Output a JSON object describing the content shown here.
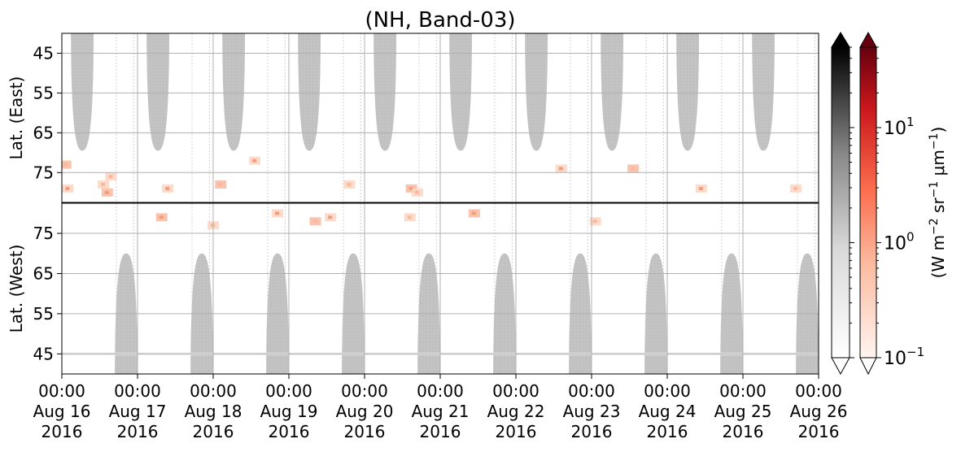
{
  "chart_data": {
    "type": "heatmap",
    "title": "(NH, Band-03)",
    "xlabel": "",
    "x_range": [
      "2016-08-16 00:00",
      "2016-08-26 00:00"
    ],
    "x_tick_labels": [
      {
        "time": "00:00",
        "date": "Aug 16",
        "year": "2016"
      },
      {
        "time": "00:00",
        "date": "Aug 17",
        "year": "2016"
      },
      {
        "time": "00:00",
        "date": "Aug 18",
        "year": "2016"
      },
      {
        "time": "00:00",
        "date": "Aug 19",
        "year": "2016"
      },
      {
        "time": "00:00",
        "date": "Aug 20",
        "year": "2016"
      },
      {
        "time": "00:00",
        "date": "Aug 21",
        "year": "2016"
      },
      {
        "time": "00:00",
        "date": "Aug 22",
        "year": "2016"
      },
      {
        "time": "00:00",
        "date": "Aug 23",
        "year": "2016"
      },
      {
        "time": "00:00",
        "date": "Aug 24",
        "year": "2016"
      },
      {
        "time": "00:00",
        "date": "Aug 25",
        "year": "2016"
      },
      {
        "time": "00:00",
        "date": "Aug 26",
        "year": "2016"
      }
    ],
    "panels": [
      {
        "name": "east",
        "ylabel": "Lat. (East)",
        "ylim": [
          40,
          82.5
        ],
        "inverted": true,
        "yticks": [
          45,
          55,
          65,
          75
        ],
        "daylight_lobes_day_offset": [
          0.27,
          1.27,
          2.27,
          3.27,
          4.27,
          5.27,
          6.27,
          7.27,
          8.27,
          9.27
        ],
        "daylight_max_latitude": 69.5,
        "daylight_half_width_days": 0.15
      },
      {
        "name": "west",
        "ylabel": "Lat. (West)",
        "ylim": [
          40,
          82.5
        ],
        "inverted": false,
        "yticks": [
          45,
          55,
          65,
          75
        ],
        "daylight_lobes_day_offset": [
          0.85,
          1.85,
          2.85,
          3.85,
          4.85,
          5.85,
          6.85,
          7.85,
          8.85,
          9.85
        ],
        "daylight_max_latitude": 70,
        "daylight_half_width_days": 0.15
      }
    ],
    "gray_colorbar": {
      "cmap": "Greys",
      "scale": "log",
      "range": [
        0.1,
        50
      ],
      "extend": "both"
    },
    "red_colorbar": {
      "cmap": "Reds",
      "scale": "log",
      "range": [
        0.1,
        50
      ],
      "extend": "both",
      "tick_labels": [
        {
          "value": 0.1,
          "base": "10",
          "exp": "−1"
        },
        {
          "value": 1,
          "base": "10",
          "exp": "0"
        },
        {
          "value": 10,
          "base": "10",
          "exp": "1"
        }
      ],
      "label_parts": [
        {
          "t": "(W m",
          "sup": false
        },
        {
          "t": "−2",
          "sup": true
        },
        {
          "t": " sr",
          "sup": false
        },
        {
          "t": "−1",
          "sup": true
        },
        {
          "t": " μm",
          "sup": false
        },
        {
          "t": "−1",
          "sup": true
        },
        {
          "t": ")",
          "sup": false
        }
      ]
    },
    "red_patches": [
      {
        "panel": "east",
        "day": 0.05,
        "lat": 73
      },
      {
        "panel": "east",
        "day": 0.08,
        "lat": 79
      },
      {
        "panel": "east",
        "day": 0.55,
        "lat": 78
      },
      {
        "panel": "east",
        "day": 0.6,
        "lat": 80
      },
      {
        "panel": "east",
        "day": 0.65,
        "lat": 76
      },
      {
        "panel": "east",
        "day": 1.4,
        "lat": 79
      },
      {
        "panel": "east",
        "day": 2.1,
        "lat": 78
      },
      {
        "panel": "east",
        "day": 2.55,
        "lat": 72
      },
      {
        "panel": "east",
        "day": 3.8,
        "lat": 78
      },
      {
        "panel": "east",
        "day": 4.62,
        "lat": 79
      },
      {
        "panel": "east",
        "day": 4.7,
        "lat": 80
      },
      {
        "panel": "east",
        "day": 6.6,
        "lat": 74
      },
      {
        "panel": "east",
        "day": 7.55,
        "lat": 74
      },
      {
        "panel": "east",
        "day": 8.45,
        "lat": 79
      },
      {
        "panel": "east",
        "day": 9.7,
        "lat": 79
      },
      {
        "panel": "west",
        "day": 1.32,
        "lat": 79
      },
      {
        "panel": "west",
        "day": 2.0,
        "lat": 77
      },
      {
        "panel": "west",
        "day": 2.85,
        "lat": 80
      },
      {
        "panel": "west",
        "day": 3.35,
        "lat": 78
      },
      {
        "panel": "west",
        "day": 3.55,
        "lat": 79
      },
      {
        "panel": "west",
        "day": 4.6,
        "lat": 79
      },
      {
        "panel": "west",
        "day": 5.45,
        "lat": 80
      },
      {
        "panel": "west",
        "day": 7.05,
        "lat": 78
      }
    ],
    "grid": true
  }
}
